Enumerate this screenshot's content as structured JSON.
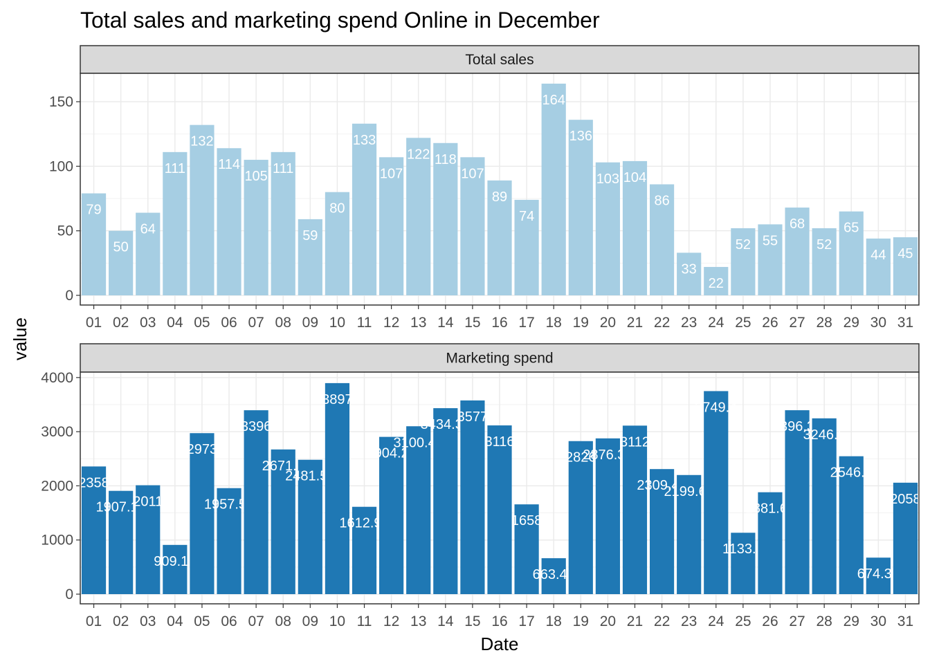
{
  "chart_data": {
    "type": "bar",
    "title": "Total sales and marketing spend Online in December",
    "xlabel": "Date",
    "ylabel": "value",
    "grid": true,
    "legend": "none",
    "categories": [
      "01",
      "02",
      "03",
      "04",
      "05",
      "06",
      "07",
      "08",
      "09",
      "10",
      "11",
      "12",
      "13",
      "14",
      "15",
      "16",
      "17",
      "18",
      "19",
      "20",
      "21",
      "22",
      "23",
      "24",
      "25",
      "26",
      "27",
      "28",
      "29",
      "30",
      "31"
    ],
    "panels": [
      {
        "name": "Total sales",
        "color": "#a6cee3",
        "ylim": [
          0,
          172
        ],
        "yticks": [
          0,
          50,
          100,
          150
        ],
        "values": [
          79,
          50,
          64,
          111,
          132,
          114,
          105,
          111,
          59,
          80,
          133,
          107,
          122,
          118,
          107,
          89,
          74,
          164,
          136,
          103,
          104,
          86,
          33,
          22,
          52,
          55,
          68,
          52,
          65,
          44,
          45
        ]
      },
      {
        "name": "Marketing spend",
        "color": "#1f78b4",
        "ylim": [
          0,
          4100
        ],
        "yticks": [
          0,
          1000,
          2000,
          3000,
          4000
        ],
        "values": [
          2358,
          1907.19,
          2011,
          909.19,
          2973,
          1957.58,
          3396,
          2671.9,
          2481.51,
          3897,
          1612.93,
          2904.23,
          3100.42,
          3434.31,
          3577,
          3116,
          1658,
          663.46,
          2826,
          2876.39,
          3112,
          2309.46,
          2199.69,
          3749.4,
          1133.7,
          1881.66,
          3396.37,
          3246.5,
          2546.5,
          674.31,
          2058
        ]
      }
    ]
  }
}
